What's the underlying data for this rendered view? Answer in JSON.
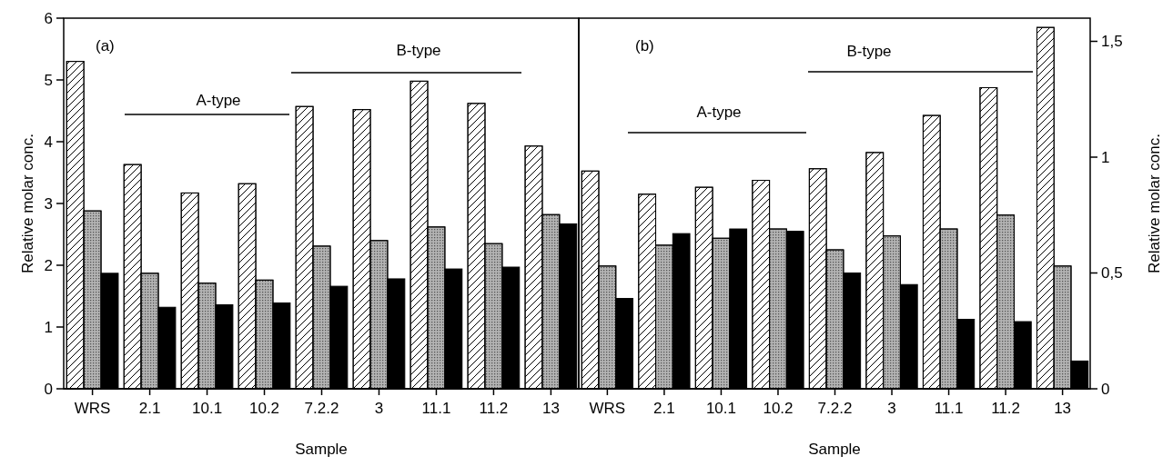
{
  "chart_data": [
    {
      "type": "bar",
      "xlabel": "Sample",
      "ylabel": "Relative molar conc.",
      "annotations": [
        "(a)",
        "A-type",
        "B-type"
      ],
      "categories": [
        "WRS",
        "2.1",
        "10.1",
        "10.2",
        "7.2.2",
        "3",
        "11.1",
        "11.2",
        "13"
      ],
      "ylim": [
        0,
        6
      ],
      "yticks": [
        0,
        1,
        2,
        3,
        4,
        5,
        6
      ],
      "series": [
        {
          "color": "#ffffff",
          "values": [
            5.3,
            3.63,
            3.17,
            3.32,
            4.57,
            4.52,
            4.98,
            4.62,
            3.93
          ]
        },
        {
          "color": "#b4b4b4",
          "values": [
            2.88,
            1.87,
            1.71,
            1.76,
            2.31,
            2.4,
            2.62,
            2.35,
            2.82
          ]
        },
        {
          "color": "#000000",
          "values": [
            1.87,
            1.32,
            1.36,
            1.39,
            1.66,
            1.78,
            1.94,
            1.97,
            2.67
          ]
        }
      ]
    },
    {
      "type": "bar",
      "xlabel": "Sample",
      "y2label": "Relative molar conc.",
      "annotations": [
        "(b)",
        "A-type",
        "B-type"
      ],
      "categories": [
        "WRS",
        "2.1",
        "10.1",
        "10.2",
        "7.2.2",
        "3",
        "11.1",
        "11.2",
        "13"
      ],
      "y2lim": [
        0,
        1.6
      ],
      "y2ticks": [
        0,
        {
          "value": 0.5,
          "label": "0,5"
        },
        1,
        {
          "value": 1.5,
          "label": "1,5"
        }
      ],
      "series": [
        {
          "color": "#ffffff",
          "axis": "y2",
          "values": [
            0.94,
            0.84,
            0.87,
            0.9,
            0.95,
            1.02,
            1.18,
            1.3,
            1.56
          ]
        },
        {
          "color": "#b4b4b4",
          "axis": "y2",
          "values": [
            0.53,
            0.62,
            0.65,
            0.69,
            0.6,
            0.66,
            0.69,
            0.75,
            0.53
          ]
        },
        {
          "color": "#000000",
          "axis": "y2",
          "values": [
            0.39,
            0.67,
            0.69,
            0.68,
            0.5,
            0.45,
            0.3,
            0.29,
            0.12
          ]
        }
      ]
    }
  ]
}
